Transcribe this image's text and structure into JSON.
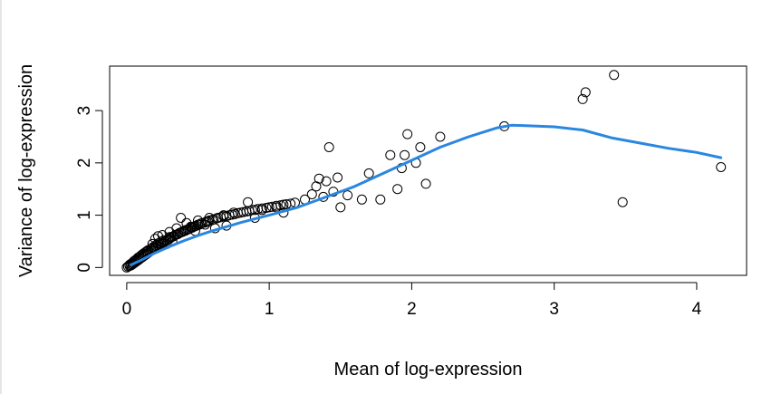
{
  "chart_data": {
    "type": "scatter",
    "title": "",
    "xlabel": "Mean of log-expression",
    "ylabel": "Variance of log-expression",
    "xlim": [
      -0.12,
      4.35
    ],
    "ylim": [
      -0.15,
      3.85
    ],
    "xticks": [
      0,
      1,
      2,
      3,
      4
    ],
    "yticks": [
      0,
      1,
      2,
      3
    ],
    "grid": false,
    "legend": "none",
    "colors": {
      "points": "#000000",
      "trend": "#2a87e0"
    },
    "series": [
      {
        "kind": "points",
        "x": [
          0.0,
          0.01,
          0.02,
          0.02,
          0.03,
          0.03,
          0.04,
          0.04,
          0.05,
          0.05,
          0.06,
          0.06,
          0.07,
          0.07,
          0.08,
          0.08,
          0.09,
          0.09,
          0.1,
          0.1,
          0.11,
          0.11,
          0.12,
          0.12,
          0.13,
          0.13,
          0.14,
          0.14,
          0.15,
          0.15,
          0.16,
          0.17,
          0.17,
          0.18,
          0.18,
          0.19,
          0.2,
          0.2,
          0.21,
          0.22,
          0.22,
          0.23,
          0.24,
          0.24,
          0.25,
          0.26,
          0.26,
          0.27,
          0.28,
          0.29,
          0.3,
          0.3,
          0.31,
          0.32,
          0.33,
          0.34,
          0.35,
          0.36,
          0.37,
          0.38,
          0.39,
          0.4,
          0.41,
          0.42,
          0.43,
          0.44,
          0.45,
          0.46,
          0.47,
          0.48,
          0.49,
          0.5,
          0.51,
          0.52,
          0.53,
          0.55,
          0.56,
          0.57,
          0.58,
          0.6,
          0.61,
          0.63,
          0.64,
          0.66,
          0.68,
          0.7,
          0.72,
          0.74,
          0.76,
          0.78,
          0.8,
          0.82,
          0.84,
          0.86,
          0.88,
          0.9,
          0.92,
          0.95,
          0.98,
          1.0,
          1.02,
          1.05,
          1.08,
          1.1,
          1.12,
          1.15,
          1.18,
          0.2,
          0.25,
          0.3,
          0.35,
          0.28,
          0.32,
          0.22,
          0.18,
          0.42,
          0.38,
          0.45,
          0.5,
          0.55,
          0.62,
          0.7,
          0.48,
          0.58,
          0.68,
          0.75,
          0.85,
          0.9,
          0.95,
          1.05,
          1.1,
          1.25,
          1.3,
          1.33,
          1.35,
          1.38,
          1.4,
          1.42,
          1.45,
          1.48,
          1.5,
          1.55,
          1.65,
          1.7,
          1.78,
          1.85,
          1.9,
          1.93,
          1.95,
          1.97,
          2.03,
          2.06,
          2.1,
          2.2,
          2.65,
          3.2,
          3.22,
          3.42,
          3.48,
          4.17
        ],
        "y": [
          0.0,
          0.02,
          0.03,
          0.05,
          0.04,
          0.07,
          0.06,
          0.09,
          0.08,
          0.12,
          0.1,
          0.14,
          0.12,
          0.16,
          0.14,
          0.19,
          0.16,
          0.2,
          0.18,
          0.23,
          0.2,
          0.25,
          0.22,
          0.27,
          0.24,
          0.29,
          0.26,
          0.31,
          0.28,
          0.33,
          0.3,
          0.32,
          0.36,
          0.34,
          0.38,
          0.37,
          0.38,
          0.42,
          0.4,
          0.42,
          0.46,
          0.44,
          0.45,
          0.49,
          0.47,
          0.48,
          0.52,
          0.5,
          0.52,
          0.54,
          0.55,
          0.58,
          0.57,
          0.59,
          0.6,
          0.62,
          0.63,
          0.64,
          0.66,
          0.67,
          0.68,
          0.7,
          0.7,
          0.72,
          0.73,
          0.74,
          0.76,
          0.76,
          0.78,
          0.79,
          0.8,
          0.82,
          0.82,
          0.84,
          0.85,
          0.86,
          0.88,
          0.88,
          0.9,
          0.91,
          0.92,
          0.94,
          0.95,
          0.96,
          0.98,
          0.98,
          1.0,
          1.01,
          1.02,
          1.04,
          1.05,
          1.06,
          1.07,
          1.08,
          1.1,
          1.1,
          1.12,
          1.13,
          1.14,
          1.15,
          1.16,
          1.18,
          1.19,
          1.2,
          1.21,
          1.22,
          1.24,
          0.55,
          0.62,
          0.68,
          0.75,
          0.45,
          0.5,
          0.6,
          0.45,
          0.85,
          0.95,
          0.78,
          0.9,
          0.82,
          0.75,
          0.8,
          0.7,
          0.95,
          1.0,
          1.05,
          1.25,
          0.95,
          1.1,
          1.15,
          1.05,
          1.3,
          1.4,
          1.55,
          1.7,
          1.35,
          1.65,
          2.3,
          1.45,
          1.72,
          1.15,
          1.38,
          1.3,
          1.8,
          1.3,
          2.15,
          1.5,
          1.9,
          2.15,
          2.55,
          2.0,
          2.3,
          1.6,
          2.5,
          2.7,
          3.22,
          3.35,
          3.68,
          1.25,
          1.92
        ]
      },
      {
        "kind": "trend",
        "x": [
          0.03,
          0.1,
          0.2,
          0.3,
          0.4,
          0.5,
          0.6,
          0.7,
          0.8,
          0.9,
          1.0,
          1.2,
          1.4,
          1.6,
          1.8,
          2.0,
          2.2,
          2.4,
          2.6,
          2.7,
          2.8,
          3.0,
          3.2,
          3.4,
          3.6,
          3.8,
          4.0,
          4.17
        ],
        "y": [
          0.05,
          0.14,
          0.28,
          0.4,
          0.51,
          0.61,
          0.7,
          0.78,
          0.86,
          0.93,
          1.0,
          1.15,
          1.35,
          1.55,
          1.8,
          2.05,
          2.3,
          2.5,
          2.67,
          2.72,
          2.71,
          2.69,
          2.63,
          2.48,
          2.38,
          2.28,
          2.2,
          2.1
        ]
      }
    ]
  }
}
